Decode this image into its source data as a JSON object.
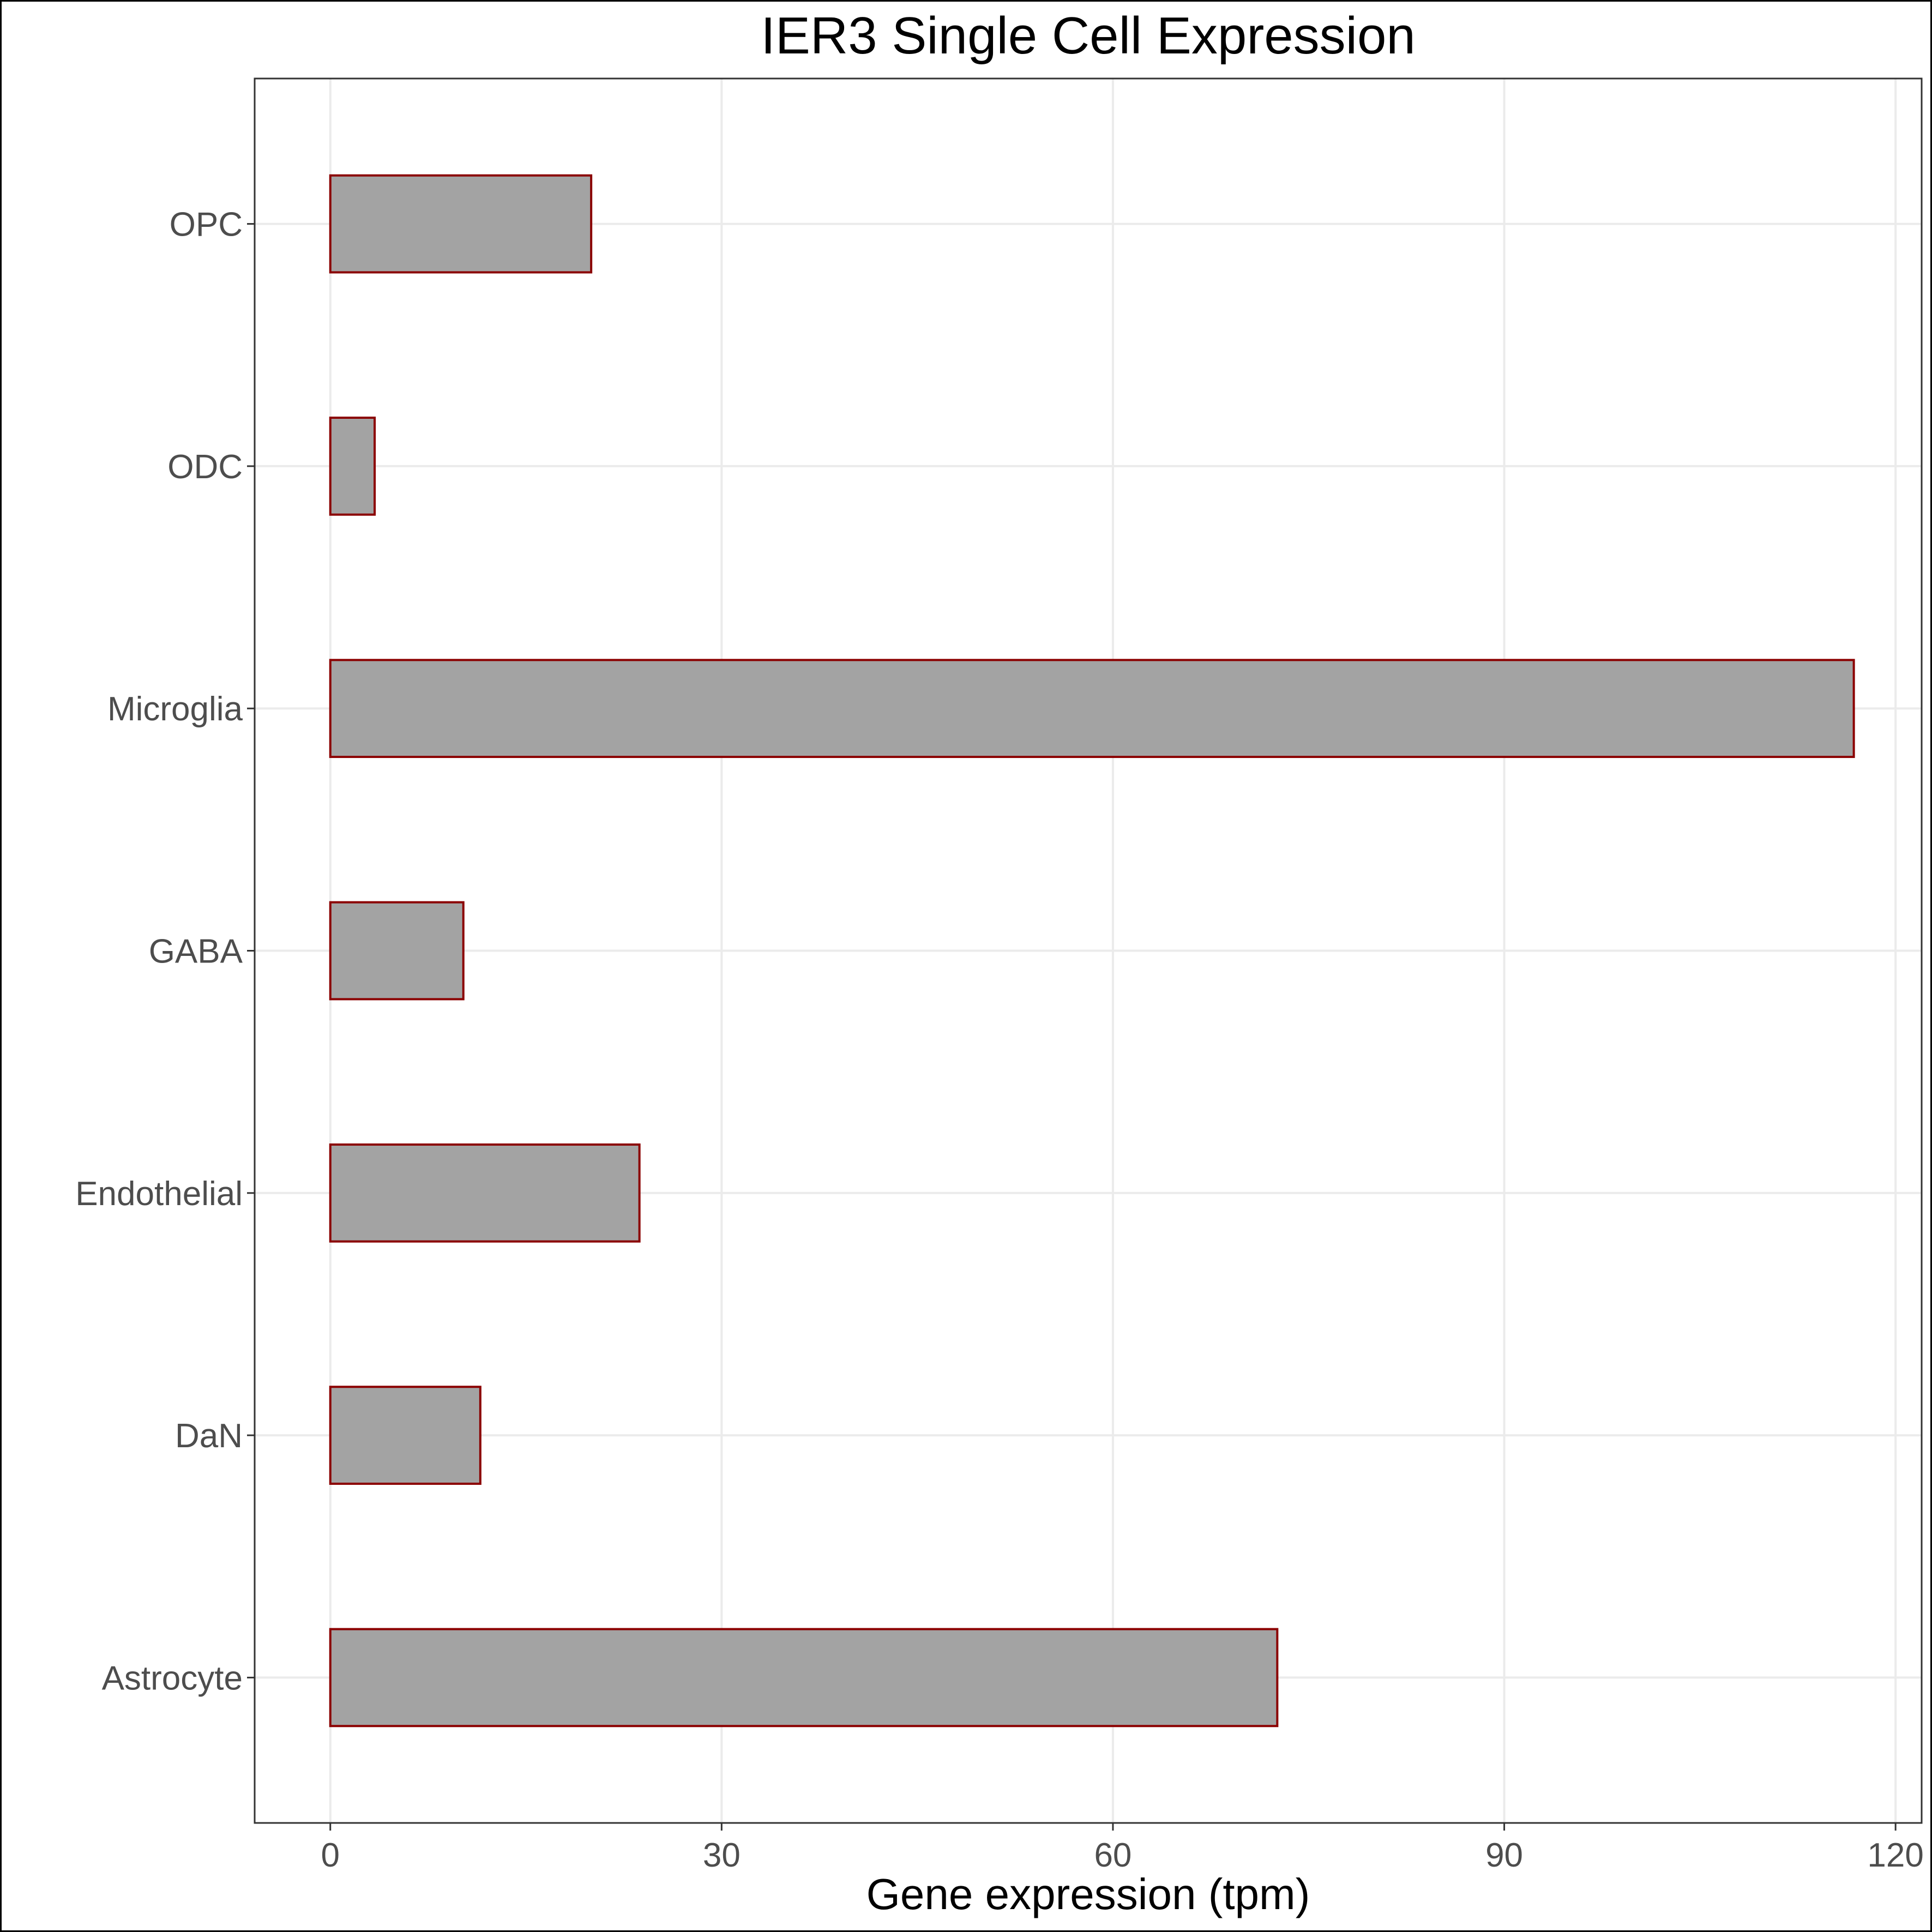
{
  "chart_data": {
    "type": "bar",
    "orientation": "horizontal",
    "title": "IER3 Single Cell Expression",
    "xlabel": "Gene expression (tpm)",
    "ylabel": "",
    "categories": [
      "Astrocyte",
      "DaN",
      "Endothelial",
      "GABA",
      "Microglia",
      "ODC",
      "OPC"
    ],
    "values": [
      72.6,
      11.5,
      23.7,
      10.2,
      116.8,
      3.4,
      20.0
    ],
    "xlim": [
      -5.8,
      122.0
    ],
    "xticks": [
      "0",
      "30",
      "60",
      "90",
      "120"
    ],
    "xtick_values": [
      0,
      30,
      60,
      90,
      120
    ],
    "grid": true,
    "legend": "none",
    "colors": {
      "bar_fill": "#a3a3a3",
      "bar_stroke": "#8b0000",
      "grid": "#ebebeb",
      "panel_border": "#333333",
      "text": "#000000",
      "tick_text": "#4d4d4d"
    }
  }
}
